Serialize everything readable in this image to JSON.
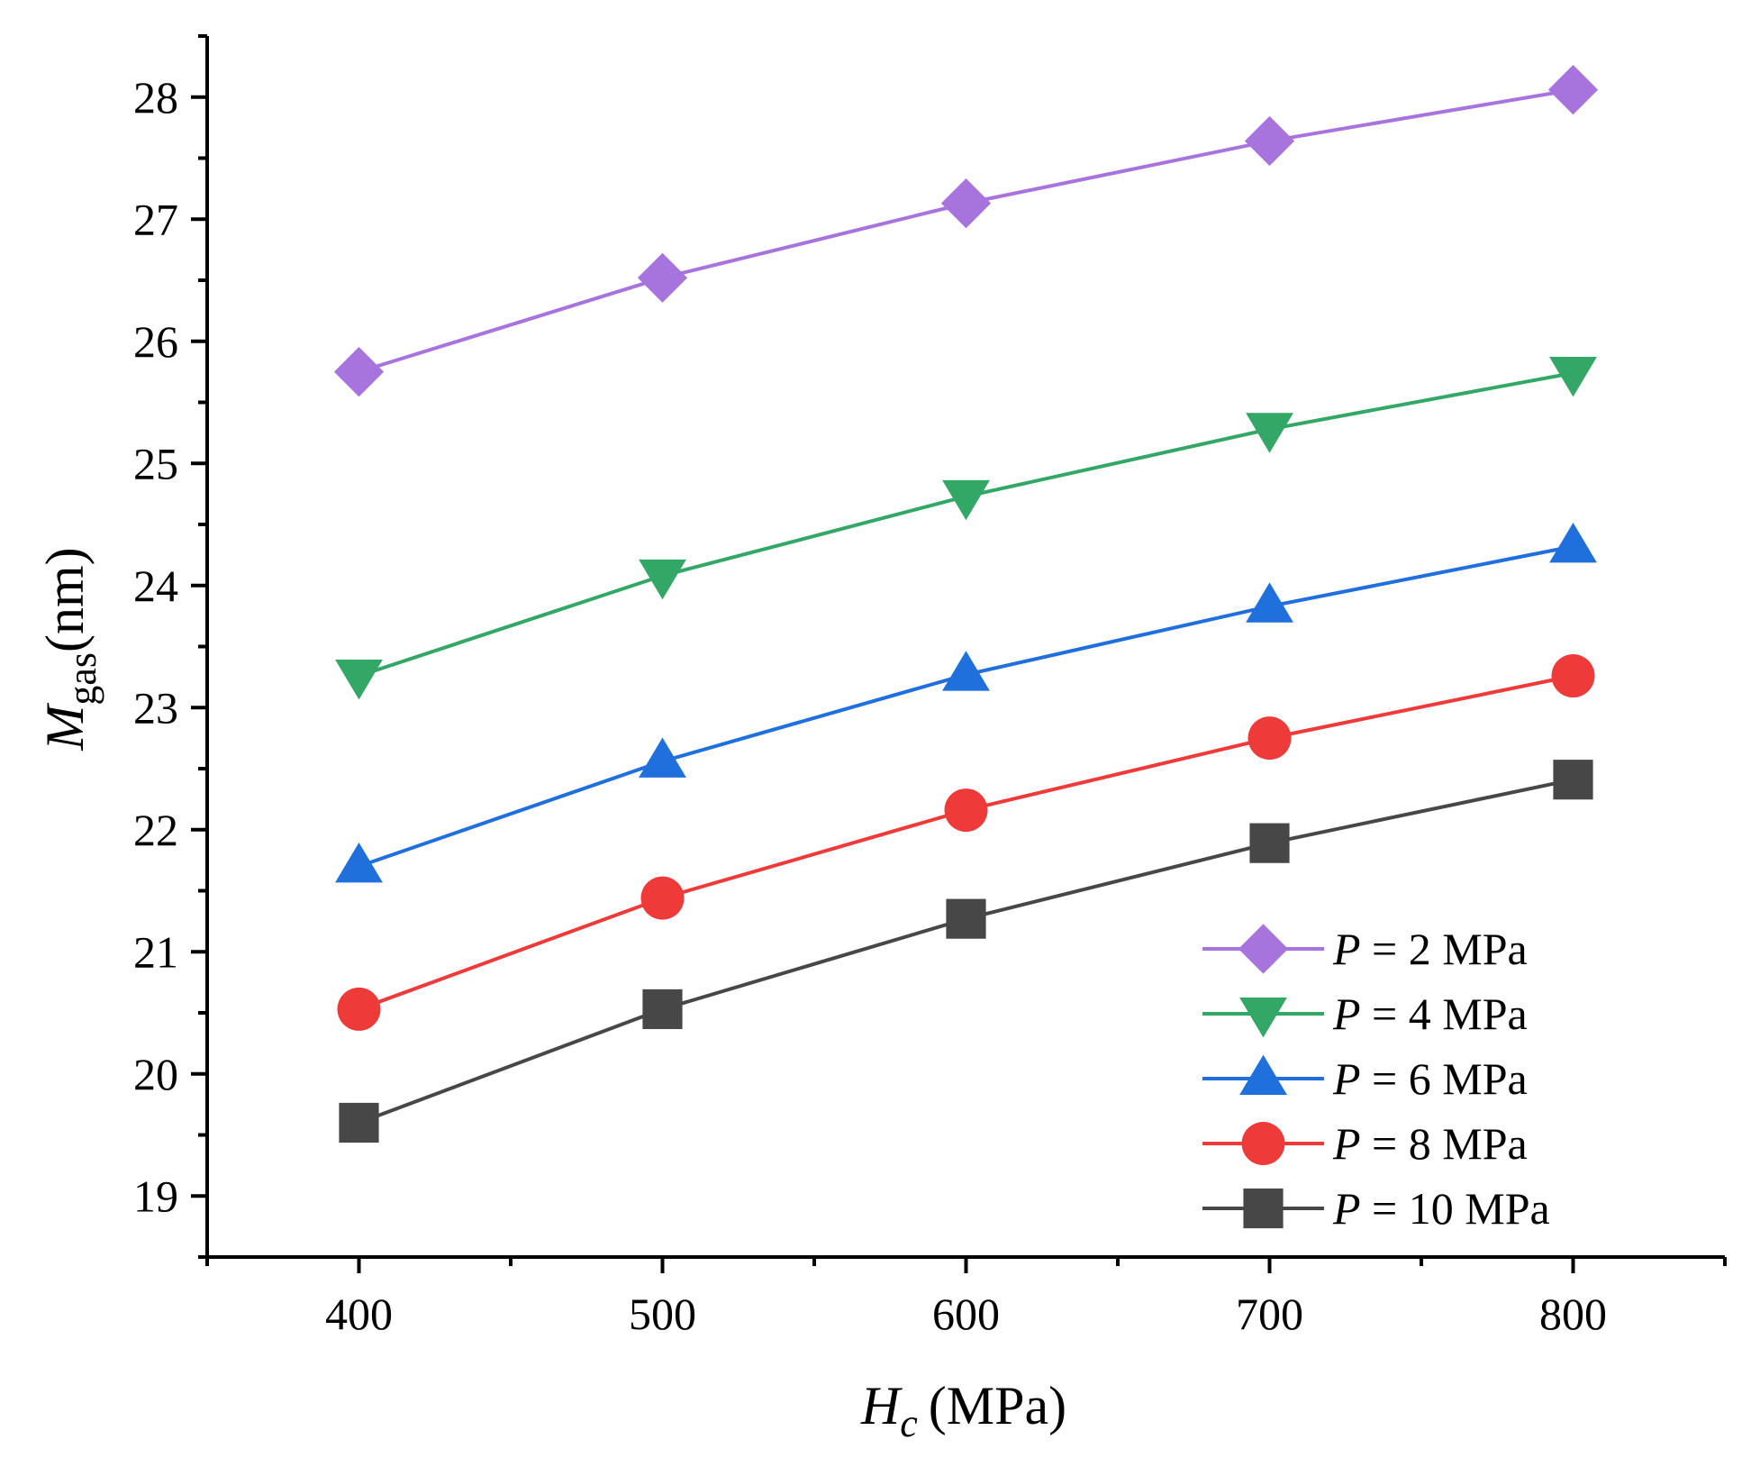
{
  "chart_data": {
    "type": "line",
    "x": [
      400,
      500,
      600,
      700,
      800
    ],
    "xlim": [
      350,
      850
    ],
    "ylim": [
      18.5,
      28.5
    ],
    "x_ticks": [
      400,
      500,
      600,
      700,
      800
    ],
    "y_ticks": [
      19,
      20,
      21,
      22,
      23,
      24,
      25,
      26,
      27,
      28
    ],
    "x_tick_labels": [
      "400",
      "500",
      "600",
      "700",
      "800"
    ],
    "y_tick_labels": [
      "19",
      "20",
      "21",
      "22",
      "23",
      "24",
      "25",
      "26",
      "27",
      "28"
    ],
    "xlabel": {
      "main": "H",
      "sub": "c",
      "unit": "(MPa)"
    },
    "ylabel": {
      "main": "M",
      "sub": "gas",
      "unit": "(nm)"
    },
    "legend_position": "bottom-right",
    "series": [
      {
        "name": "P = 2 MPa",
        "legend_var": "P",
        "legend_rest": " = 2 MPa",
        "color": "#a773dd",
        "marker": "diamond",
        "values": [
          25.75,
          26.52,
          27.13,
          27.64,
          28.06
        ]
      },
      {
        "name": "P = 4 MPa",
        "legend_var": "P",
        "legend_rest": " = 4 MPa",
        "color": "#33a766",
        "marker": "triangle-down",
        "values": [
          23.26,
          24.08,
          24.73,
          25.28,
          25.74
        ]
      },
      {
        "name": "P = 6 MPa",
        "legend_var": "P",
        "legend_rest": " = 6 MPa",
        "color": "#1f6fdd",
        "marker": "triangle-up",
        "values": [
          21.7,
          22.56,
          23.27,
          23.83,
          24.32
        ]
      },
      {
        "name": "P = 8 MPa",
        "legend_var": "P",
        "legend_rest": " = 8 MPa",
        "color": "#ef3a3a",
        "marker": "circle",
        "values": [
          20.53,
          21.44,
          22.16,
          22.75,
          23.26
        ]
      },
      {
        "name": "P = 10 MPa",
        "legend_var": "P",
        "legend_rest": " = 10 MPa",
        "color": "#474747",
        "marker": "square",
        "values": [
          19.6,
          20.53,
          21.27,
          21.89,
          22.41
        ]
      }
    ]
  }
}
